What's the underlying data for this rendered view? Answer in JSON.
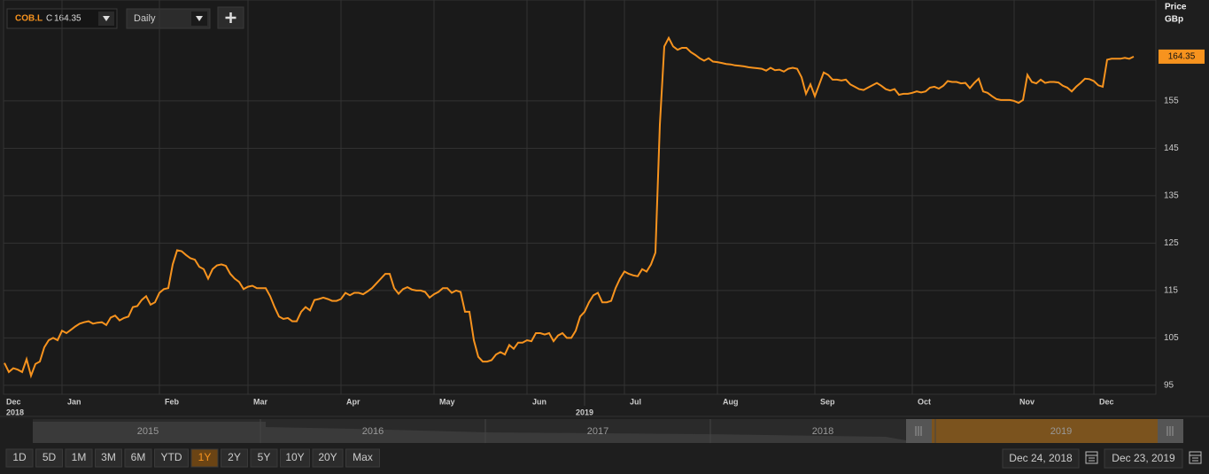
{
  "toolbar": {
    "ric": "COB.L",
    "quote_prefix": "C",
    "quote": 164.35,
    "interval": "Daily"
  },
  "chart_data": {
    "type": "line",
    "y_axis_title": [
      "Price",
      "GBp"
    ],
    "series": [
      {
        "color": "#f7931e",
        "values": [
          99.7,
          97.8,
          98.6,
          98.3,
          97.8,
          100.5,
          97,
          99.5,
          100,
          103,
          104.5,
          105,
          104.5,
          106.5,
          106,
          106.7,
          107.4,
          108,
          108.3,
          108.5,
          108,
          108.2,
          108.3,
          107.7,
          109.3,
          109.7,
          108.7,
          109.2,
          109.5,
          111.5,
          111.7,
          113,
          113.8,
          112,
          112.5,
          114.5,
          115.3,
          115.5,
          120.5,
          123.5,
          123.3,
          122.5,
          121.8,
          121.5,
          120,
          119.5,
          117.5,
          119.5,
          120.3,
          120.5,
          120.2,
          118.5,
          117.5,
          116.8,
          115.3,
          115.8,
          116,
          115.5,
          115.5,
          115.5,
          113.8,
          111.5,
          109.5,
          109,
          109.2,
          108.5,
          108.5,
          110.5,
          111.5,
          110.8,
          113,
          113.2,
          113.5,
          113.2,
          112.8,
          112.8,
          113.2,
          114.5,
          114,
          114.5,
          114.5,
          114.2,
          114.8,
          115.5,
          116.5,
          117.5,
          118.5,
          118.5,
          115.5,
          114.3,
          115.3,
          115.7,
          115.2,
          115,
          115,
          114.7,
          113.5,
          114.2,
          114.7,
          115.5,
          115.5,
          114.5,
          115,
          114.7,
          110.5,
          110.5,
          104.5,
          101,
          100,
          100,
          100.3,
          101.5,
          102,
          101.5,
          103.5,
          102.7,
          104,
          104,
          104.5,
          104.3,
          106,
          106,
          105.7,
          106,
          104.3,
          105.5,
          106,
          105,
          105,
          106.5,
          109.5,
          110.5,
          112.5,
          114,
          114.5,
          112.5,
          112.5,
          112.8,
          115.5,
          117.5,
          119,
          118.5,
          118.2,
          118,
          119.5,
          119,
          120.5,
          123,
          150,
          166.5,
          168.3,
          166.5,
          165.8,
          166.2,
          166.2,
          165.3,
          164.7,
          164,
          163.5,
          164,
          163.3,
          163.2,
          163,
          162.8,
          162.7,
          162.5,
          162.4,
          162.3,
          162.1,
          162,
          161.9,
          161.8,
          161.4,
          162,
          161.5,
          161.6,
          161.2,
          161.8,
          162,
          161.8,
          160,
          156.5,
          158.5,
          156,
          158.5,
          161,
          160.5,
          159.5,
          159.5,
          159.3,
          159.5,
          158.5,
          158,
          157.5,
          157.3,
          157.8,
          158.3,
          158.8,
          158.2,
          157.5,
          157.2,
          157.5,
          156.3,
          156.5,
          156.5,
          156.7,
          157,
          156.8,
          157,
          157.8,
          158,
          157.6,
          158.2,
          159.2,
          159,
          159,
          158.7,
          158.8,
          157.7,
          158.8,
          159.7,
          157,
          156.7,
          156,
          155.4,
          155.2,
          155.2,
          155.2,
          155,
          154.6,
          155.2,
          160.5,
          159,
          158.7,
          159.5,
          158.8,
          159,
          159,
          158.9,
          158.2,
          157.8,
          157,
          158,
          158.8,
          159.7,
          159.6,
          159.2,
          158.3,
          158,
          163.7,
          163.9,
          163.9,
          163.9,
          164.1,
          163.9,
          164.35
        ]
      }
    ],
    "xlim": [
      0,
      255
    ],
    "xticks": [
      {
        "value": 0,
        "label": "Dec"
      },
      {
        "value": 13,
        "label": "Jan"
      },
      {
        "value": 35,
        "label": "Feb"
      },
      {
        "value": 55,
        "label": "Mar"
      },
      {
        "value": 76,
        "label": "Apr"
      },
      {
        "value": 97,
        "label": "May"
      },
      {
        "value": 118,
        "label": "Jun"
      },
      {
        "value": 140,
        "label": "Jul"
      },
      {
        "value": 161,
        "label": "Aug"
      },
      {
        "value": 183,
        "label": "Sep"
      },
      {
        "value": 205,
        "label": "Oct"
      },
      {
        "value": 228,
        "label": "Nov"
      },
      {
        "value": 246,
        "label": "Dec"
      }
    ],
    "year_ticks": [
      {
        "value": 0,
        "label": "2018"
      },
      {
        "value": 131,
        "label": "2019"
      }
    ],
    "ylim": [
      93.1,
      176.3
    ],
    "yticks": [
      95,
      105,
      115,
      125,
      135,
      145,
      155
    ],
    "grid": true
  },
  "navigator": {
    "years": [
      "2015",
      "2016",
      "2017",
      "2018",
      "2019"
    ]
  },
  "range_buttons": [
    "1D",
    "5D",
    "1M",
    "3M",
    "6M",
    "YTD",
    "1Y",
    "2Y",
    "5Y",
    "10Y",
    "20Y",
    "Max"
  ],
  "active_range": "1Y",
  "date_range": {
    "from": "Dec 24, 2018",
    "to": "Dec 23, 2019"
  }
}
